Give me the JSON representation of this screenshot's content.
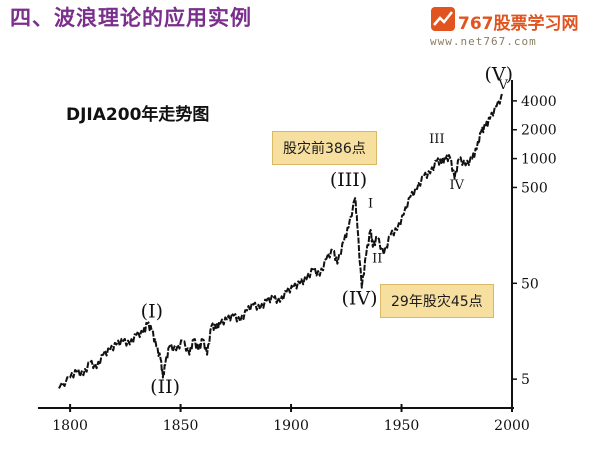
{
  "slide": {
    "title": "四、波浪理论的应用实例"
  },
  "logo": {
    "brand": "767股票学习网",
    "url": "www.net767.com"
  },
  "notes": [
    {
      "text": "股灾前386点"
    },
    {
      "text": "29年股灾45点"
    }
  ],
  "colors": {
    "title": "#7b2f8c",
    "brand": "#e2541f",
    "note_bg": "#f6df9f",
    "line": "#111111"
  },
  "chart_data": {
    "type": "line",
    "title": "DJIA200年走势图",
    "y_scale": "log",
    "xlim": [
      1790,
      2000
    ],
    "ylim": [
      2.5,
      6000
    ],
    "x_ticks": [
      1800,
      1850,
      1900,
      1950,
      2000
    ],
    "y_ticks": [
      5,
      50,
      500,
      1000,
      2000,
      4000
    ],
    "grid": false,
    "series": [
      {
        "x": [
          1795,
          1800,
          1803,
          1806,
          1809,
          1812,
          1815,
          1818,
          1821,
          1824,
          1827,
          1830,
          1833,
          1835,
          1837,
          1839,
          1841,
          1842,
          1843,
          1845,
          1848,
          1851,
          1854,
          1856,
          1858,
          1860,
          1862,
          1864,
          1866,
          1868,
          1871,
          1874,
          1877,
          1880,
          1883,
          1886,
          1889,
          1892,
          1895,
          1898,
          1901,
          1904,
          1907,
          1910,
          1913,
          1916,
          1919,
          1921,
          1924,
          1926,
          1929,
          1930,
          1932,
          1934,
          1936,
          1937,
          1939,
          1942,
          1945,
          1948,
          1951,
          1954,
          1957,
          1960,
          1963,
          1966,
          1968,
          1970,
          1972,
          1974,
          1976,
          1979,
          1982,
          1984,
          1986,
          1988,
          1990,
          1993,
          1996
        ],
        "y": [
          4.0,
          5.2,
          6.0,
          5.5,
          7.5,
          6.5,
          9.0,
          10.0,
          11.5,
          12.5,
          11.5,
          14.5,
          15.0,
          19.0,
          16.0,
          11.0,
          8.0,
          5.2,
          7.0,
          11.0,
          10.0,
          12.5,
          9.0,
          13.0,
          10.0,
          13.0,
          9.0,
          18.0,
          17.0,
          19.0,
          21.0,
          23.0,
          20.0,
          26.0,
          30.0,
          27.0,
          33.0,
          35.0,
          32.0,
          41.0,
          45.0,
          50.0,
          55.0,
          70.0,
          60.0,
          90.0,
          110.0,
          80.0,
          140.0,
          190.0,
          386.0,
          200.0,
          45.0,
          100.0,
          180.0,
          120.0,
          150.0,
          100.0,
          160.0,
          180.0,
          260.0,
          400.0,
          480.0,
          650.0,
          700.0,
          950.0,
          900.0,
          1000.0,
          1020.0,
          620.0,
          1000.0,
          850.0,
          1000.0,
          1250.0,
          1900.0,
          2150.0,
          2600.0,
          3500.0,
          4600.0
        ]
      }
    ],
    "wave_labels": [
      {
        "text": "(I)",
        "x": 1837,
        "y": 22.0,
        "size": "large"
      },
      {
        "text": "(II)",
        "x": 1843,
        "y": 3.6,
        "size": "large"
      },
      {
        "text": "(III)",
        "x": 1926,
        "y": 520.0,
        "size": "large"
      },
      {
        "text": "(IV)",
        "x": 1931,
        "y": 30.0,
        "size": "large"
      },
      {
        "text": "(V)",
        "x": 1994,
        "y": 6500.0,
        "size": "large"
      },
      {
        "text": "I",
        "x": 1936,
        "y": 310.0,
        "size": "small"
      },
      {
        "text": "II",
        "x": 1939,
        "y": 82.0,
        "size": "small"
      },
      {
        "text": "III",
        "x": 1966,
        "y": 1450.0,
        "size": "small"
      },
      {
        "text": "IV",
        "x": 1975,
        "y": 480.0,
        "size": "small"
      },
      {
        "text": "V",
        "x": 1996,
        "y": 5300.0,
        "size": "small"
      }
    ]
  }
}
